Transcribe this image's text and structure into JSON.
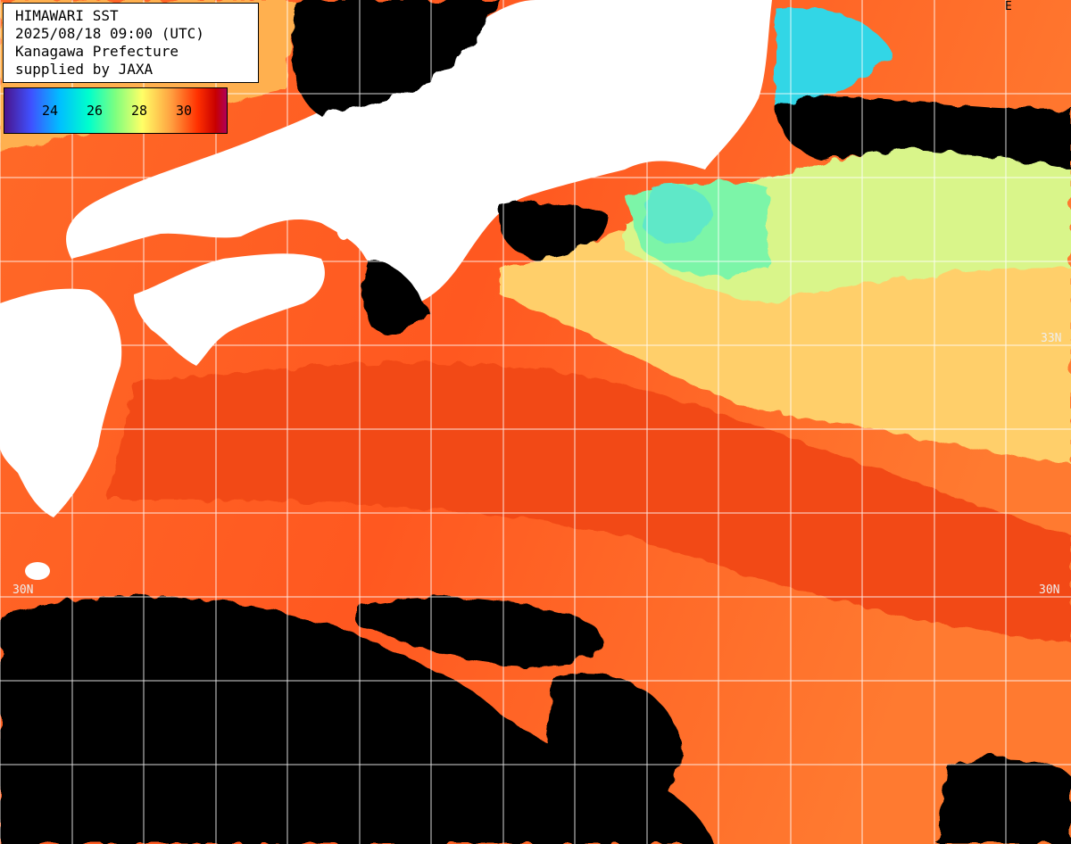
{
  "header": {
    "title": "HIMAWARI SST",
    "datetime": "2025/08/18 09:00 (UTC)",
    "region": "Kanagawa Prefecture",
    "credit": "supplied by JAXA"
  },
  "legend": {
    "ticks": [
      "24",
      "26",
      "28",
      "30"
    ],
    "colors": [
      "#4a148c",
      "#3f51ff",
      "#00bfff",
      "#00ffcc",
      "#7fff7f",
      "#ffff66",
      "#ffa040",
      "#ff3000",
      "#c80000",
      "#b0005a"
    ]
  },
  "grid_labels": {
    "lat_33_right": "33N",
    "lat_30_left": "30N",
    "lat_30_right": "30N",
    "corner_mark": "E"
  },
  "colors": {
    "land": "#ffffff",
    "cloud": "#000000",
    "warm_sea": "#ff5a1e",
    "mid_sea": "#ff8c3c",
    "cool_sea": "#ffe07a",
    "cold_sea": "#7cf5a8",
    "coldest_sea": "#33d6e6",
    "grid": "#ffffff"
  }
}
